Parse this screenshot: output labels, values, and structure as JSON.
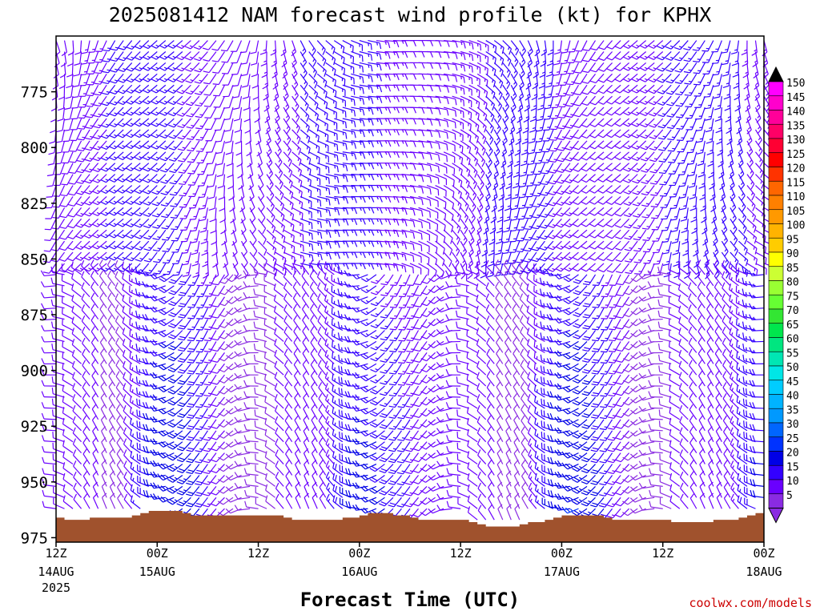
{
  "chart_data": {
    "type": "wind-barb-profile",
    "title": "2025081412 NAM forecast wind profile (kt) for KPHX",
    "xlabel": "Forecast Time (UTC)",
    "ylabel": "",
    "y_axis": {
      "scale": "pressure (hPa), inverted",
      "range": [
        750,
        977
      ],
      "ticks": [
        775,
        800,
        825,
        850,
        875,
        900,
        925,
        950,
        975
      ]
    },
    "x_axis": {
      "range_hours": [
        0,
        84
      ],
      "ticks": [
        {
          "hour": 0,
          "time": "12Z",
          "date": "14AUG",
          "year": "2025"
        },
        {
          "hour": 12,
          "time": "00Z",
          "date": "15AUG",
          "year": ""
        },
        {
          "hour": 24,
          "time": "12Z",
          "date": "",
          "year": ""
        },
        {
          "hour": 36,
          "time": "00Z",
          "date": "16AUG",
          "year": ""
        },
        {
          "hour": 48,
          "time": "12Z",
          "date": "",
          "year": ""
        },
        {
          "hour": 60,
          "time": "00Z",
          "date": "17AUG",
          "year": ""
        },
        {
          "hour": 72,
          "time": "12Z",
          "date": "",
          "year": ""
        },
        {
          "hour": 84,
          "time": "00Z",
          "date": "18AUG",
          "year": ""
        }
      ]
    },
    "colorbar": {
      "labels": [
        "5",
        "10",
        "15",
        "20",
        "25",
        "30",
        "35",
        "40",
        "45",
        "50",
        "55",
        "60",
        "65",
        "70",
        "75",
        "80",
        "85",
        "90",
        "95",
        "100",
        "105",
        "110",
        "115",
        "120",
        "125",
        "130",
        "135",
        "140",
        "145",
        "150"
      ],
      "colors": [
        "#8a2be2",
        "#6a00ff",
        "#3300ff",
        "#0000e6",
        "#0033ff",
        "#0066ff",
        "#0099ff",
        "#00b3ff",
        "#00ccff",
        "#00e6e6",
        "#00e6b3",
        "#00e680",
        "#00e64d",
        "#33e633",
        "#66ff33",
        "#99ff33",
        "#ccff33",
        "#ffff00",
        "#ffcc00",
        "#ffb300",
        "#ff9900",
        "#ff8000",
        "#ff6600",
        "#ff3300",
        "#ff0000",
        "#ff0033",
        "#ff0066",
        "#ff0099",
        "#ff00cc",
        "#ff00ff"
      ],
      "extends": "both"
    },
    "terrain_color": "#a0522d",
    "terrain_profile_hpa": [
      [
        0,
        966
      ],
      [
        1,
        967
      ],
      [
        3,
        967
      ],
      [
        4,
        966
      ],
      [
        7,
        966
      ],
      [
        9,
        965
      ],
      [
        10,
        964
      ],
      [
        11,
        963
      ],
      [
        14,
        963
      ],
      [
        15,
        964
      ],
      [
        16,
        965
      ],
      [
        26,
        965
      ],
      [
        27,
        966
      ],
      [
        28,
        967
      ],
      [
        33,
        967
      ],
      [
        34,
        966
      ],
      [
        36,
        965
      ],
      [
        37,
        964
      ],
      [
        39,
        964
      ],
      [
        40,
        965
      ],
      [
        42,
        966
      ],
      [
        43,
        967
      ],
      [
        48,
        967
      ],
      [
        49,
        968
      ],
      [
        50,
        969
      ],
      [
        51,
        970
      ],
      [
        54,
        970
      ],
      [
        55,
        969
      ],
      [
        56,
        968
      ],
      [
        58,
        967
      ],
      [
        59,
        966
      ],
      [
        60,
        965
      ],
      [
        64,
        965
      ],
      [
        65,
        966
      ],
      [
        66,
        967
      ],
      [
        72,
        967
      ],
      [
        73,
        968
      ],
      [
        77,
        968
      ],
      [
        78,
        967
      ],
      [
        80,
        967
      ],
      [
        81,
        966
      ],
      [
        82,
        965
      ],
      [
        83,
        964
      ],
      [
        84,
        963
      ]
    ],
    "wind_barbs": {
      "hours": [
        0,
        1,
        2,
        3,
        4,
        5,
        6,
        7,
        8,
        9,
        10,
        11,
        12,
        13,
        14,
        15,
        16,
        17,
        18,
        19,
        20,
        21,
        22,
        23,
        24,
        25,
        26,
        27,
        28,
        29,
        30,
        31,
        32,
        33,
        34,
        35,
        36,
        37,
        38,
        39,
        40,
        41,
        42,
        43,
        44,
        45,
        46,
        47,
        48,
        49,
        50,
        51,
        52,
        53,
        54,
        55,
        56,
        57,
        58,
        59,
        60,
        61,
        62,
        63,
        64,
        65,
        66,
        67,
        68,
        69,
        70,
        71,
        72,
        73,
        74,
        75,
        76,
        77,
        78,
        79,
        80,
        81,
        82,
        83,
        84
      ],
      "levels_hpa": [
        752,
        757,
        762,
        767,
        772,
        777,
        782,
        787,
        792,
        797,
        802,
        807,
        812,
        817,
        822,
        827,
        832,
        837,
        842,
        847,
        852,
        857,
        862,
        867,
        872,
        877,
        882,
        887,
        892,
        897,
        902,
        907,
        912,
        917,
        922,
        927,
        932,
        937,
        942,
        947,
        952,
        957,
        962,
        967,
        972
      ],
      "description_key": "direction_deg/speed_kt"
    }
  },
  "credit": "coolwx.com/models"
}
